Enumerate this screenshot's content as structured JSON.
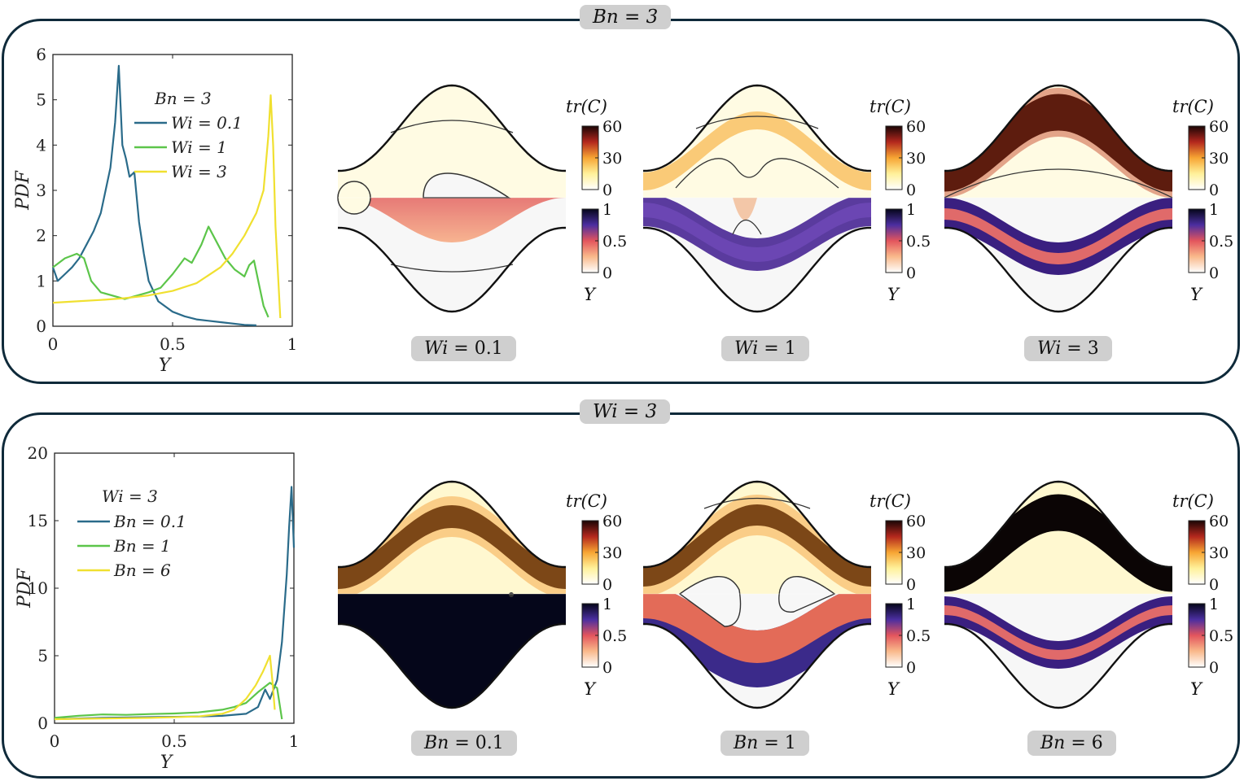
{
  "panels": [
    {
      "tag": "Bn = 3",
      "chart_data": {
        "type": "line",
        "title": "",
        "xlabel": "Y",
        "ylabel": "PDF",
        "xlim": [
          0,
          1
        ],
        "ylim": [
          0,
          6
        ],
        "xticks": [
          "0",
          "0.5",
          "1"
        ],
        "yticks": [
          "0",
          "1",
          "2",
          "3",
          "4",
          "5",
          "6"
        ],
        "legend_title": "Bn = 3",
        "series": [
          {
            "name": "Wi = 0.1",
            "color": "#2a6b8a",
            "x": [
              0,
              0.02,
              0.05,
              0.08,
              0.11,
              0.14,
              0.17,
              0.2,
              0.22,
              0.24,
              0.26,
              0.275,
              0.29,
              0.305,
              0.32,
              0.34,
              0.36,
              0.38,
              0.4,
              0.44,
              0.5,
              0.55,
              0.6,
              0.7,
              0.8,
              0.85
            ],
            "y": [
              1.3,
              1.0,
              1.15,
              1.3,
              1.5,
              1.8,
              2.1,
              2.5,
              3.0,
              3.5,
              4.5,
              5.75,
              4.0,
              3.7,
              3.3,
              3.4,
              2.3,
              1.6,
              1.0,
              0.55,
              0.32,
              0.22,
              0.15,
              0.09,
              0.03,
              0.02
            ]
          },
          {
            "name": "Wi = 1",
            "color": "#5cc54a",
            "x": [
              0,
              0.05,
              0.1,
              0.13,
              0.16,
              0.2,
              0.3,
              0.4,
              0.45,
              0.5,
              0.55,
              0.58,
              0.62,
              0.65,
              0.68,
              0.72,
              0.76,
              0.8,
              0.82,
              0.84,
              0.86,
              0.88,
              0.9
            ],
            "y": [
              1.3,
              1.5,
              1.6,
              1.5,
              1.0,
              0.75,
              0.6,
              0.75,
              0.85,
              1.15,
              1.5,
              1.4,
              1.8,
              2.2,
              1.9,
              1.5,
              1.25,
              1.1,
              1.35,
              1.45,
              0.95,
              0.45,
              0.2
            ]
          },
          {
            "name": "Wi = 3",
            "color": "#f0e030",
            "x": [
              0,
              0.1,
              0.2,
              0.3,
              0.4,
              0.5,
              0.6,
              0.7,
              0.75,
              0.8,
              0.85,
              0.88,
              0.9,
              0.91,
              0.92,
              0.93,
              0.95
            ],
            "y": [
              0.52,
              0.55,
              0.58,
              0.62,
              0.68,
              0.78,
              0.95,
              1.3,
              1.6,
              2.0,
              2.5,
              3.0,
              4.2,
              5.1,
              4.0,
              2.2,
              0.18
            ]
          }
        ]
      },
      "fields": [
        {
          "label_lhs": "Wi",
          "label_rhs": "= 0.1",
          "variant": "a1"
        },
        {
          "label_lhs": "Wi",
          "label_rhs": "= 1",
          "variant": "a2"
        },
        {
          "label_lhs": "Wi",
          "label_rhs": "= 3",
          "variant": "a3"
        }
      ]
    },
    {
      "tag": "Wi = 3",
      "chart_data": {
        "type": "line",
        "title": "",
        "xlabel": "Y",
        "ylabel": "PDF",
        "xlim": [
          0,
          1
        ],
        "ylim": [
          0,
          20
        ],
        "xticks": [
          "0",
          "0.5",
          "1"
        ],
        "yticks": [
          "0",
          "5",
          "10",
          "15",
          "20"
        ],
        "legend_title": "Wi = 3",
        "series": [
          {
            "name": "Bn = 0.1",
            "color": "#2a6b8a",
            "x": [
              0,
              0.2,
              0.4,
              0.6,
              0.7,
              0.8,
              0.85,
              0.88,
              0.9,
              0.93,
              0.95,
              0.97,
              0.98,
              0.99,
              1.0
            ],
            "y": [
              0.3,
              0.4,
              0.45,
              0.5,
              0.55,
              0.7,
              1.2,
              2.5,
              1.8,
              3.2,
              6.0,
              11.0,
              14.5,
              17.5,
              13.0
            ]
          },
          {
            "name": "Bn = 1",
            "color": "#5cc54a",
            "x": [
              0,
              0.1,
              0.2,
              0.3,
              0.4,
              0.5,
              0.6,
              0.7,
              0.75,
              0.8,
              0.85,
              0.9,
              0.93,
              0.95
            ],
            "y": [
              0.4,
              0.55,
              0.65,
              0.62,
              0.68,
              0.72,
              0.8,
              1.0,
              1.2,
              1.5,
              2.3,
              3.0,
              2.6,
              0.3
            ]
          },
          {
            "name": "Bn = 6",
            "color": "#f0e030",
            "x": [
              0,
              0.2,
              0.4,
              0.6,
              0.7,
              0.75,
              0.8,
              0.84,
              0.87,
              0.9,
              0.91,
              0.92
            ],
            "y": [
              0.3,
              0.35,
              0.4,
              0.5,
              0.7,
              1.0,
              1.8,
              2.8,
              3.8,
              5.0,
              3.2,
              1.0
            ]
          }
        ]
      },
      "fields": [
        {
          "label_lhs": "Bn",
          "label_rhs": "= 0.1",
          "variant": "b1"
        },
        {
          "label_lhs": "Bn",
          "label_rhs": "= 1",
          "variant": "b2"
        },
        {
          "label_lhs": "Bn",
          "label_rhs": "= 6",
          "variant": "b3"
        }
      ]
    }
  ],
  "colorbars": {
    "top_title": "tr(C)",
    "top_ticks": [
      "60",
      "30",
      "0"
    ],
    "bottom_ticks": [
      "1",
      "0.5",
      "0"
    ],
    "bottom_label": "Y"
  }
}
